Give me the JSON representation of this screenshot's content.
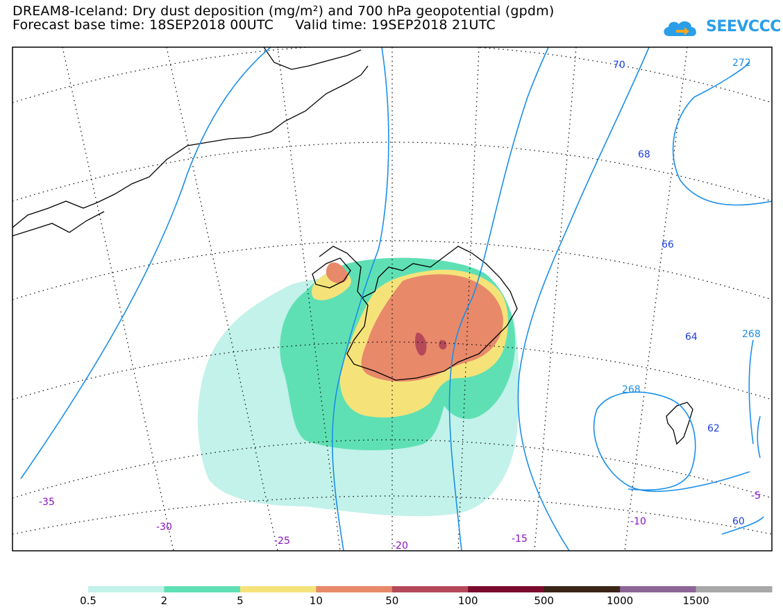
{
  "title": {
    "line1": "DREAM8-Iceland: Dry dust deposition (mg/m²) and 700 hPa geopotential (gpdm)",
    "line2": "Forecast base time: 18SEP2018 00UTC     Valid time: 19SEP2018 21UTC"
  },
  "logo": {
    "text": "SEEVCCC",
    "icon": "cloud-arrow-icon",
    "color": "#2a9ee8"
  },
  "contour_labels": {
    "geopotential": [
      "70",
      "68",
      "66",
      "64",
      "62",
      "60",
      "272",
      "268",
      "268"
    ],
    "longitude": [
      "-35",
      "-30",
      "-25",
      "-20",
      "-15",
      "-10",
      "-5"
    ]
  },
  "colorbar": {
    "labels": [
      "0.5",
      "2",
      "5",
      "10",
      "50",
      "100",
      "500",
      "1000",
      "1500"
    ],
    "colors": [
      "#c2f2ea",
      "#5fe0b4",
      "#f5e37a",
      "#e8896a",
      "#b5495a",
      "#7a0a2e",
      "#3a2416",
      "#8c6496",
      "#a8a8a8"
    ]
  },
  "colors": {
    "geopotential_contour": "#1a8ee8",
    "geopotential_label": "#1a3ee0",
    "longitude_label": "#8a10c8",
    "coastline": "#000000",
    "grid": "#000000"
  }
}
